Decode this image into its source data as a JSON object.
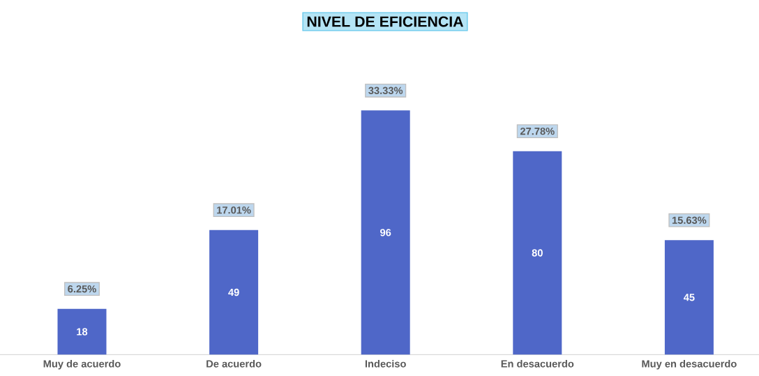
{
  "chart_data": {
    "type": "bar",
    "title": "NIVEL DE EFICIENCIA",
    "categories": [
      "Muy de acuerdo",
      "De acuerdo",
      "Indeciso",
      "En desacuerdo",
      "Muy en desacuerdo"
    ],
    "values": [
      18,
      49,
      96,
      80,
      45
    ],
    "color": "#4f67c8",
    "data_labels": true,
    "annotations": [
      {
        "text": "6.25%",
        "x": "Muy de acuerdo",
        "y": 18
      },
      {
        "text": "17.01%",
        "x": "De acuerdo",
        "y": 49
      },
      {
        "text": "33.33%",
        "x": "Indeciso",
        "y": 96
      },
      {
        "text": "27.78%",
        "x": "En desacuerdo",
        "y": 80
      },
      {
        "text": "15.63%",
        "x": "Muy en desacuerdo",
        "y": 45
      }
    ]
  }
}
